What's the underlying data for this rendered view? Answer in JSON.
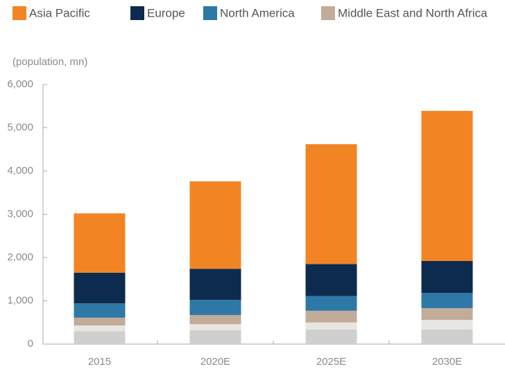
{
  "chart_data": {
    "type": "stacked_bar",
    "y_label": "(population, mn)",
    "categories": [
      "2015",
      "2020E",
      "2025E",
      "2030E"
    ],
    "series": [
      {
        "name": "Asia Pacific",
        "color": "#f28423",
        "values": [
          1370,
          2020,
          2770,
          3470
        ]
      },
      {
        "name": "Europe",
        "color": "#0d2b4e",
        "values": [
          710,
          720,
          740,
          740
        ]
      },
      {
        "name": "North America",
        "color": "#2e78a8",
        "values": [
          330,
          350,
          340,
          350
        ]
      },
      {
        "name": "Middle East and North Africa",
        "color": "#c2ab98",
        "values": [
          180,
          210,
          270,
          270
        ]
      },
      {
        "color": "#e8e6e2",
        "values": [
          130,
          140,
          160,
          220
        ]
      },
      {
        "color": "#cfcfcd",
        "values": [
          300,
          320,
          340,
          340
        ]
      }
    ],
    "ylim": [
      0,
      6000
    ],
    "yticks": [
      0,
      {
        "value": 1000,
        "label": "1,000"
      },
      {
        "value": 2000,
        "label": "2,000"
      },
      {
        "value": 3000,
        "label": "3,000"
      },
      {
        "value": 4000,
        "label": "4,000"
      },
      {
        "value": 5000,
        "label": "5,000"
      },
      {
        "value": 6000,
        "label": "6,000"
      }
    ],
    "legend": "top"
  }
}
